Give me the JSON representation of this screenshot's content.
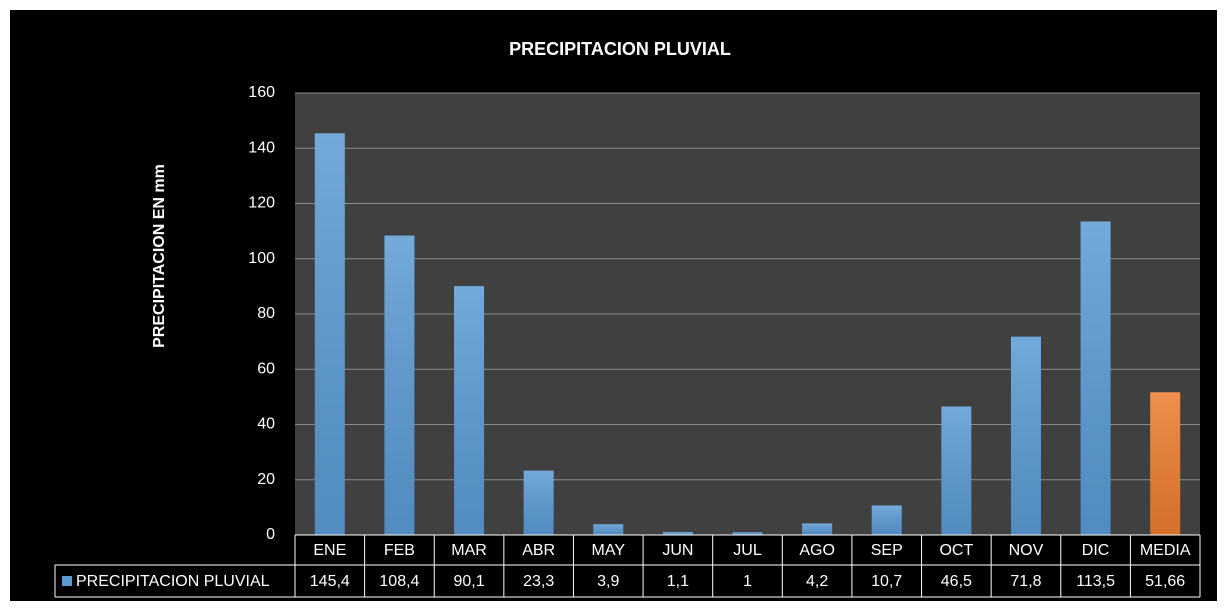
{
  "chart_data": {
    "type": "bar",
    "title": "PRECIPITACION PLUVIAL",
    "y_label": "PRECIPITACION EN mm",
    "categories": [
      "ENE",
      "FEB",
      "MAR",
      "ABR",
      "MAY",
      "JUN",
      "JUL",
      "AGO",
      "SEP",
      "OCT",
      "NOV",
      "DIC",
      "MEDIA"
    ],
    "series": [
      {
        "name": "PRECIPITACION PLUVIAL",
        "color": "#5b9bd5",
        "point_colors": [
          "#5b9bd5",
          "#5b9bd5",
          "#5b9bd5",
          "#5b9bd5",
          "#5b9bd5",
          "#5b9bd5",
          "#5b9bd5",
          "#5b9bd5",
          "#5b9bd5",
          "#5b9bd5",
          "#5b9bd5",
          "#5b9bd5",
          "#ed7d31"
        ],
        "values": [
          145.4,
          108.4,
          90.1,
          23.3,
          3.9,
          1.1,
          1,
          4.2,
          10.7,
          46.5,
          71.8,
          113.5,
          51.66
        ],
        "value_labels": [
          "145,4",
          "108,4",
          "90,1",
          "23,3",
          "3,9",
          "1,1",
          "1",
          "4,2",
          "10,7",
          "46,5",
          "71,8",
          "113,5",
          "51,66"
        ]
      }
    ],
    "ylim": [
      0,
      160
    ],
    "yticks": [
      0,
      20,
      40,
      60,
      80,
      100,
      120,
      140,
      160
    ],
    "grid": true,
    "data_table": true
  }
}
